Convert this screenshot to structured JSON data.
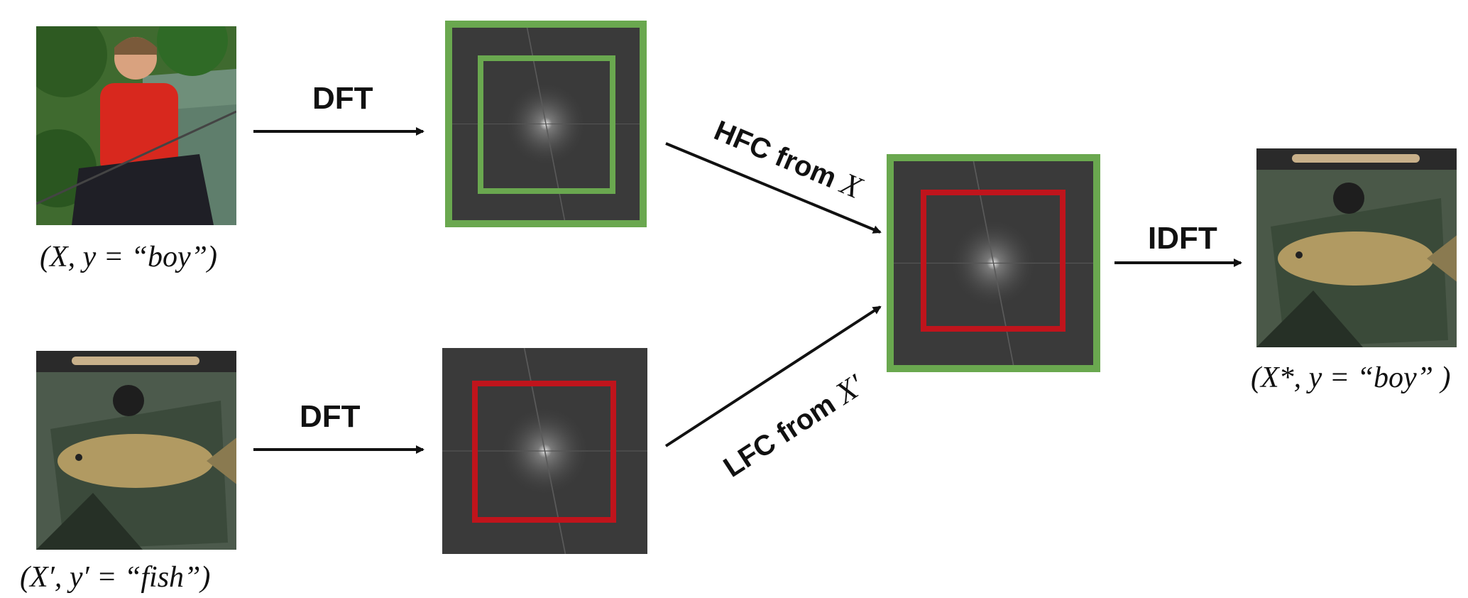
{
  "labels": {
    "dft_top": "DFT",
    "dft_bottom": "DFT",
    "idft": "IDFT",
    "hfc_text": "HFC from ",
    "hfc_var": "X",
    "lfc_text": "LFC from ",
    "lfc_var": "X′"
  },
  "captions": {
    "boy": "(X, y = “boy”)",
    "fish": "(X′, y′ = “fish”)",
    "result": "(X*, y = “boy” )"
  },
  "colors": {
    "high_frequency_box": "#6aa84f",
    "low_frequency_box": "#c0141c",
    "spectrum_background": "#3a3a3a",
    "arrow": "#111111"
  },
  "images": {
    "boy_photo": "boy-fishing-photo",
    "fish_photo": "fish-photo",
    "result_photo": "mixed-fish-photo"
  }
}
